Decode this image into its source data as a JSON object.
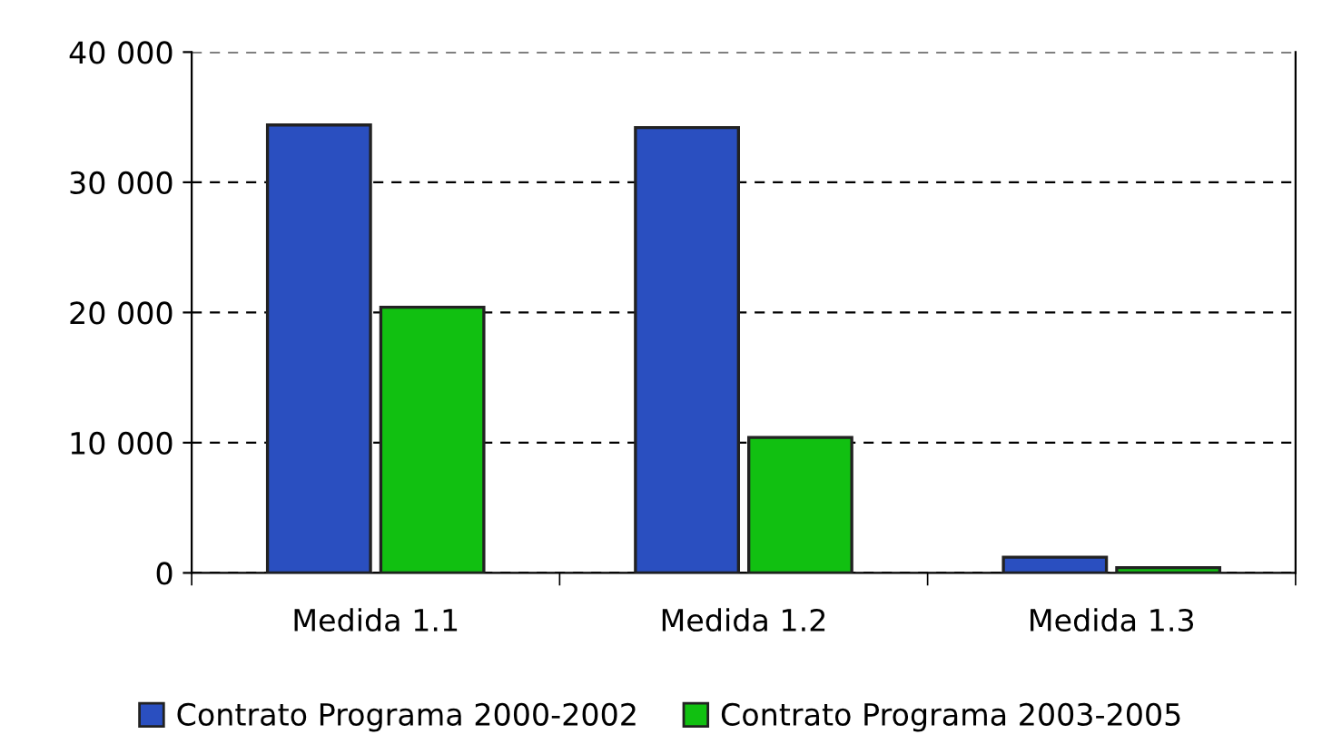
{
  "chart_data": {
    "type": "bar",
    "categories": [
      "Medida 1.1",
      "Medida 1.2",
      "Medida 1.3"
    ],
    "series": [
      {
        "name": "Contrato Programa 2000-2002",
        "color": "#2a4fc0",
        "values": [
          34400,
          34200,
          1200
        ]
      },
      {
        "name": "Contrato Programa 2003-2005",
        "color": "#11c011",
        "values": [
          20400,
          10400,
          400
        ]
      }
    ],
    "ylim": [
      0,
      40000
    ],
    "yticks": [
      0,
      {
        "value": 10000,
        "label": "10 000"
      },
      {
        "value": 20000,
        "label": "20 000"
      },
      {
        "value": 30000,
        "label": "30 000"
      },
      {
        "value": 40000,
        "label": "40 000"
      }
    ],
    "grid": "y",
    "legend": "bottom"
  }
}
